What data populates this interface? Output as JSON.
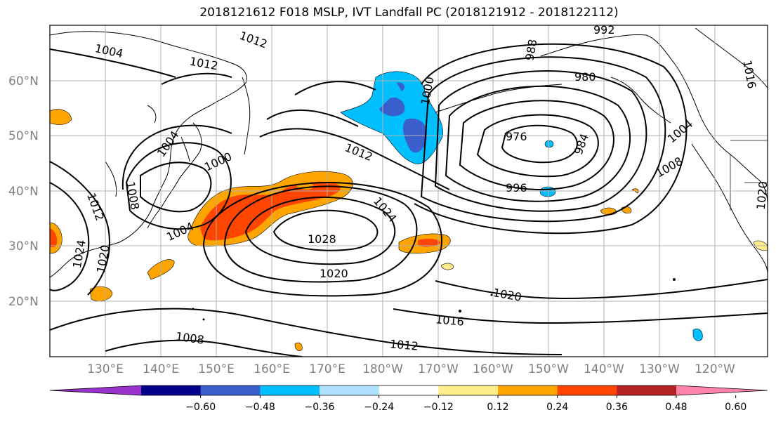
{
  "title": "2018121612 F018 MSLP, IVT Landfall PC (2018121912 - 2018122112)",
  "map": {
    "lat_labels": [
      "60°N",
      "50°N",
      "40°N",
      "30°N",
      "20°N"
    ],
    "lon_labels": [
      "130°E",
      "140°E",
      "150°E",
      "160°E",
      "170°E",
      "180°W",
      "170°W",
      "160°W",
      "150°W",
      "140°W",
      "130°W",
      "120°W"
    ],
    "contour_labels": [
      "1004",
      "1012",
      "1012",
      "992",
      "988",
      "980",
      "976",
      "984",
      "1004",
      "1008",
      "996",
      "1012",
      "1000",
      "1000",
      "1004",
      "1004",
      "1008",
      "1012",
      "1024",
      "1028",
      "1024",
      "1020",
      "1020",
      "1016",
      "1012",
      "1008",
      "1020",
      "1016",
      "1020"
    ],
    "colors": {
      "land_outline": "#000000",
      "grid": "#b0b0b0",
      "contour": "#000000"
    }
  },
  "colorbar": {
    "tick_labels": [
      "−0.60",
      "−0.48",
      "−0.36",
      "−0.24",
      "−0.12",
      "0.12",
      "0.24",
      "0.36",
      "0.48",
      "0.60"
    ],
    "colors": [
      "#9932cc",
      "#00008b",
      "#3a5fcd",
      "#00bfff",
      "#b0e2ff",
      "#ffffff",
      "#ffec8b",
      "#ffa500",
      "#ff4500",
      "#b22222",
      "#ff82ab"
    ]
  }
}
